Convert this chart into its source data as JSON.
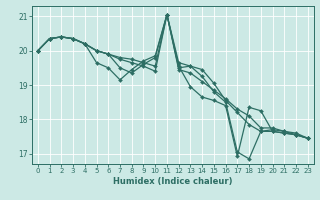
{
  "xlabel": "Humidex (Indice chaleur)",
  "xlim": [
    -0.5,
    23.5
  ],
  "ylim": [
    16.7,
    21.3
  ],
  "yticks": [
    17,
    18,
    19,
    20,
    21
  ],
  "xticks": [
    0,
    1,
    2,
    3,
    4,
    5,
    6,
    7,
    8,
    9,
    10,
    11,
    12,
    13,
    14,
    15,
    16,
    17,
    18,
    19,
    20,
    21,
    22,
    23
  ],
  "bg_color": "#cce9e5",
  "grid_color": "#ffffff",
  "line_color": "#2d6e64",
  "line1": [
    20.0,
    20.35,
    20.4,
    20.35,
    20.2,
    20.0,
    19.9,
    19.8,
    19.75,
    19.65,
    19.55,
    21.05,
    19.45,
    19.35,
    19.1,
    18.85,
    18.6,
    18.3,
    18.1,
    17.75,
    17.75,
    17.65,
    17.55,
    17.45
  ],
  "line2": [
    20.0,
    20.35,
    20.4,
    20.35,
    20.2,
    19.65,
    19.5,
    19.15,
    19.45,
    19.7,
    19.85,
    21.05,
    19.5,
    19.55,
    19.45,
    19.05,
    18.55,
    18.2,
    17.85,
    17.65,
    17.65,
    17.6,
    17.55,
    17.45
  ],
  "line3": [
    20.0,
    20.35,
    20.4,
    20.35,
    20.2,
    20.0,
    19.9,
    19.5,
    19.35,
    19.6,
    19.8,
    21.05,
    19.65,
    19.55,
    19.25,
    18.8,
    18.5,
    17.05,
    16.85,
    17.65,
    17.7,
    17.65,
    17.6,
    17.45
  ],
  "line4": [
    20.0,
    20.35,
    20.4,
    20.35,
    20.2,
    20.0,
    19.9,
    19.75,
    19.65,
    19.55,
    19.4,
    21.05,
    19.55,
    18.95,
    18.65,
    18.55,
    18.4,
    16.92,
    18.35,
    18.25,
    17.65,
    17.6,
    17.55,
    17.45
  ]
}
